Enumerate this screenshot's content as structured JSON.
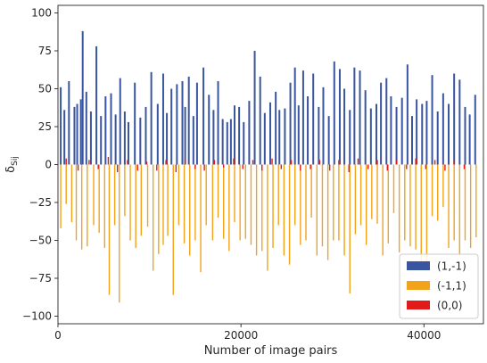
{
  "chart_data": {
    "type": "bar",
    "title": "",
    "xlabel": "Number of image pairs",
    "ylabel": "δ_{S_{ij}}",
    "ylabel_main": "δ",
    "ylabel_sub": "Sij",
    "xlim": [
      0,
      46500
    ],
    "ylim": [
      -105,
      105
    ],
    "xticks": [
      0,
      20000,
      40000
    ],
    "yticks": [
      -100,
      -75,
      -50,
      -25,
      0,
      25,
      50,
      75,
      100
    ],
    "grid": false,
    "legend": "bottom-right",
    "series": [
      {
        "name": "(1,-1)",
        "color": "#3a55a0",
        "x": [
          300,
          700,
          1200,
          1800,
          2100,
          2500,
          2700,
          3100,
          3600,
          4200,
          4700,
          5200,
          5800,
          6300,
          6800,
          7300,
          7700,
          8400,
          9000,
          9600,
          10200,
          10900,
          11500,
          11900,
          12400,
          13000,
          13600,
          13900,
          14300,
          14800,
          15200,
          15900,
          16500,
          17000,
          17500,
          18000,
          18500,
          18900,
          19300,
          19800,
          20300,
          20900,
          21500,
          22100,
          22600,
          23200,
          23800,
          24200,
          24800,
          25400,
          25900,
          26300,
          26800,
          27300,
          27900,
          28500,
          29000,
          29600,
          30200,
          30800,
          31300,
          31900,
          32400,
          33000,
          33600,
          34200,
          34800,
          35300,
          35900,
          36400,
          37000,
          37600,
          38200,
          38700,
          39200,
          39800,
          40300,
          40900,
          41500,
          42100,
          42700,
          43300,
          43900,
          44500,
          45000,
          45600
        ],
        "values": [
          51,
          36,
          55,
          38,
          40,
          43,
          88,
          48,
          35,
          78,
          32,
          45,
          47,
          33,
          57,
          35,
          28,
          54,
          31,
          38,
          61,
          40,
          60,
          34,
          50,
          53,
          55,
          38,
          58,
          32,
          54,
          64,
          46,
          36,
          55,
          30,
          28,
          30,
          39,
          38,
          28,
          42,
          75,
          58,
          34,
          41,
          48,
          36,
          37,
          54,
          64,
          39,
          62,
          45,
          60,
          38,
          51,
          32,
          68,
          63,
          50,
          36,
          64,
          62,
          49,
          37,
          40,
          54,
          57,
          45,
          38,
          44,
          66,
          32,
          43,
          40,
          42,
          59,
          35,
          47,
          40,
          60,
          56,
          38,
          33,
          46
        ]
      },
      {
        "name": "(-1,1)",
        "color": "#f2a31b",
        "x": [
          300,
          900,
          1500,
          2000,
          2600,
          3200,
          3900,
          4500,
          5100,
          5600,
          6200,
          6700,
          7300,
          7900,
          8500,
          9100,
          9800,
          10400,
          11000,
          11500,
          12000,
          12600,
          13200,
          13800,
          14400,
          15000,
          15600,
          16200,
          16900,
          17500,
          18100,
          18700,
          19300,
          19900,
          20500,
          21100,
          21700,
          22300,
          22900,
          23500,
          24100,
          24700,
          25300,
          25900,
          26500,
          27100,
          27700,
          28300,
          28900,
          29500,
          30100,
          30700,
          31300,
          31900,
          32500,
          33100,
          33700,
          34300,
          34900,
          35500,
          36100,
          36700,
          37300,
          37900,
          38500,
          39100,
          39700,
          40300,
          40900,
          41500,
          42100,
          42700,
          43300,
          43900,
          44500,
          45100,
          45700
        ],
        "values": [
          -42,
          -26,
          -38,
          -50,
          -56,
          -54,
          -40,
          -45,
          -55,
          -86,
          -40,
          -91,
          -34,
          -50,
          -55,
          -47,
          -41,
          -70,
          -59,
          -53,
          -47,
          -86,
          -40,
          -52,
          -60,
          -50,
          -71,
          -40,
          -50,
          -35,
          -49,
          -57,
          -38,
          -50,
          -49,
          -53,
          -60,
          -57,
          -70,
          -55,
          -40,
          -60,
          -66,
          -40,
          -53,
          -50,
          -35,
          -60,
          -54,
          -63,
          -50,
          -50,
          -60,
          -85,
          -46,
          -40,
          -53,
          -36,
          -39,
          -60,
          -52,
          -32,
          -58,
          -50,
          -54,
          -56,
          -66,
          -64,
          -34,
          -37,
          -28,
          -55,
          -50,
          -60,
          -50,
          -55,
          -48
        ]
      },
      {
        "name": "(0,0)",
        "color": "#e31a1c",
        "x": [
          900,
          2200,
          3400,
          4400,
          5500,
          6500,
          7600,
          8700,
          9700,
          10800,
          11800,
          12900,
          13900,
          15000,
          16000,
          17100,
          18100,
          19200,
          20200,
          21300,
          22300,
          23400,
          24400,
          25500,
          26500,
          27600,
          28600,
          29700,
          30700,
          31800,
          32800,
          33900,
          34900,
          36000,
          37000,
          38100,
          39100,
          40200,
          41200,
          42300,
          43300,
          44400
        ],
        "values": [
          4,
          -4,
          3,
          -3,
          5,
          -5,
          3,
          -4,
          2,
          -4,
          3,
          -5,
          4,
          -3,
          -4,
          3,
          -2,
          4,
          -3,
          3,
          -4,
          4,
          -3,
          3,
          -4,
          -3,
          3,
          -4,
          3,
          -5,
          4,
          -3,
          3,
          -4,
          3,
          -3,
          4,
          -3,
          3,
          -4,
          3,
          -3
        ]
      }
    ]
  }
}
